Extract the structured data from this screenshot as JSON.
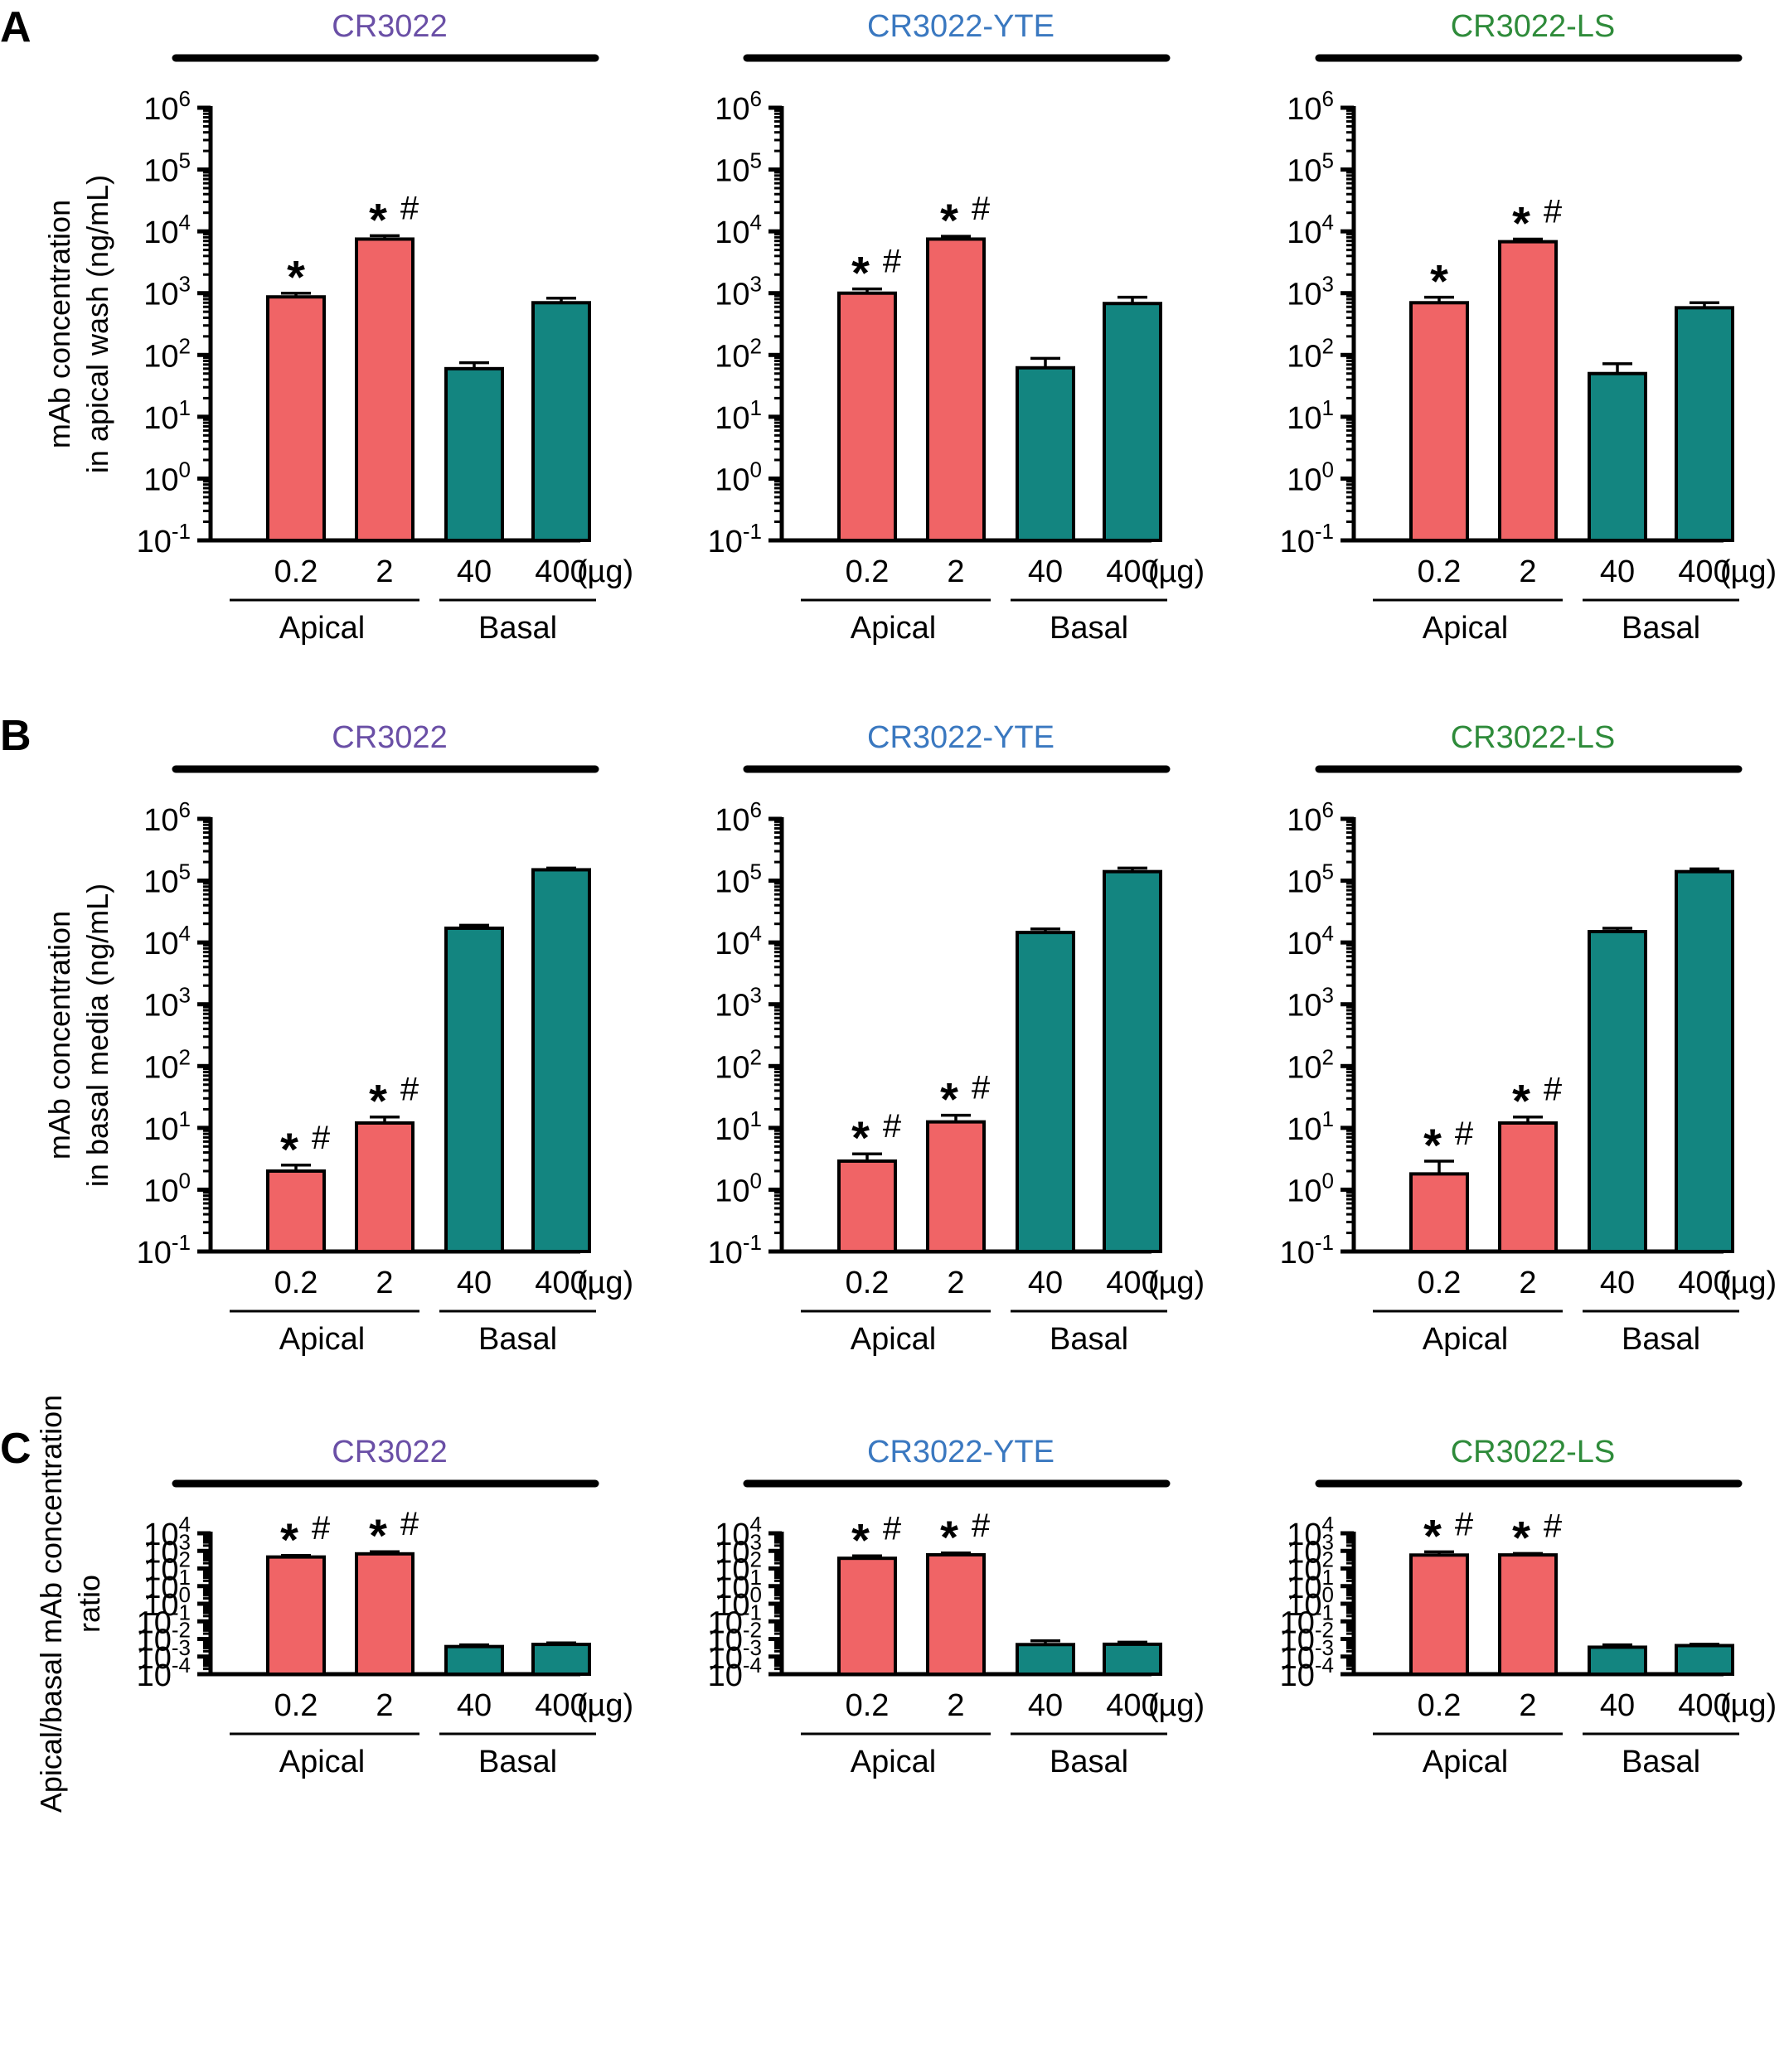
{
  "figure": {
    "panel_letters": [
      "A",
      "B",
      "C"
    ],
    "colors": {
      "apical": "#f06466",
      "basal": "#138580",
      "axis": "#000000"
    },
    "antibody_colors": {
      "CR3022": "#6a4fa6",
      "CR3022-YTE": "#3a78c0",
      "CR3022-LS": "#2e8b3a"
    }
  },
  "chart_data": [
    {
      "type": "bar",
      "row": "A",
      "title": "CR3022",
      "ylabel": [
        "mAb concentration",
        "in apical wash (ng/mL)"
      ],
      "yscale": "log",
      "ylim_exp": [
        -1,
        6
      ],
      "categories": [
        "0.2",
        "2",
        "40",
        "400"
      ],
      "unit_label": "(µg)",
      "groups": [
        "Apical",
        "Basal"
      ],
      "values": [
        870,
        7500,
        60,
        700
      ],
      "errors": [
        1000,
        8500,
        75,
        830
      ],
      "annotations": [
        "*",
        "* #",
        "",
        ""
      ]
    },
    {
      "type": "bar",
      "row": "A",
      "title": "CR3022-YTE",
      "ylabel": [
        "mAb concentration",
        "in apical wash (ng/mL)"
      ],
      "yscale": "log",
      "ylim_exp": [
        -1,
        6
      ],
      "categories": [
        "0.2",
        "2",
        "40",
        "400"
      ],
      "unit_label": "(µg)",
      "groups": [
        "Apical",
        "Basal"
      ],
      "values": [
        1000,
        7500,
        62,
        680
      ],
      "errors": [
        1170,
        8300,
        88,
        860
      ],
      "annotations": [
        "* #",
        "* #",
        "",
        ""
      ]
    },
    {
      "type": "bar",
      "row": "A",
      "title": "CR3022-LS",
      "ylabel": [
        "mAb concentration",
        "in apical wash (ng/mL)"
      ],
      "yscale": "log",
      "ylim_exp": [
        -1,
        6
      ],
      "categories": [
        "0.2",
        "2",
        "40",
        "400"
      ],
      "unit_label": "(µg)",
      "groups": [
        "Apical",
        "Basal"
      ],
      "values": [
        700,
        6800,
        50,
        580
      ],
      "errors": [
        860,
        7500,
        72,
        700
      ],
      "annotations": [
        "*",
        "* #",
        "",
        ""
      ]
    },
    {
      "type": "bar",
      "row": "B",
      "title": "CR3022",
      "ylabel": [
        "mAb concentration",
        "in basal media (ng/mL)"
      ],
      "yscale": "log",
      "ylim_exp": [
        -1,
        6
      ],
      "categories": [
        "0.2",
        "2",
        "40",
        "400"
      ],
      "unit_label": "(µg)",
      "groups": [
        "Apical",
        "Basal"
      ],
      "values": [
        2,
        12,
        17000,
        150000
      ],
      "errors": [
        2.5,
        15,
        19000,
        160000
      ],
      "annotations": [
        "* #",
        "* #",
        "",
        ""
      ]
    },
    {
      "type": "bar",
      "row": "B",
      "title": "CR3022-YTE",
      "ylabel": [
        "mAb concentration",
        "in basal media (ng/mL)"
      ],
      "yscale": "log",
      "ylim_exp": [
        -1,
        6
      ],
      "categories": [
        "0.2",
        "2",
        "40",
        "400"
      ],
      "unit_label": "(µg)",
      "groups": [
        "Apical",
        "Basal"
      ],
      "values": [
        2.9,
        12.5,
        14500,
        140000
      ],
      "errors": [
        3.8,
        16,
        16500,
        160000
      ],
      "annotations": [
        "* #",
        "* #",
        "",
        ""
      ]
    },
    {
      "type": "bar",
      "row": "B",
      "title": "CR3022-LS",
      "ylabel": [
        "mAb concentration",
        "in basal media (ng/mL)"
      ],
      "yscale": "log",
      "ylim_exp": [
        -1,
        6
      ],
      "categories": [
        "0.2",
        "2",
        "40",
        "400"
      ],
      "unit_label": "(µg)",
      "groups": [
        "Apical",
        "Basal"
      ],
      "values": [
        1.8,
        12,
        15000,
        140000
      ],
      "errors": [
        2.9,
        15,
        17000,
        155000
      ],
      "annotations": [
        "* #",
        "* #",
        "",
        ""
      ]
    },
    {
      "type": "bar",
      "row": "C",
      "title": "CR3022",
      "ylabel": [
        "Apical/basal mAb concentration",
        "ratio"
      ],
      "yscale": "log",
      "ylim_exp": [
        -4,
        4
      ],
      "categories": [
        "0.2",
        "2",
        "40",
        "400"
      ],
      "unit_label": "(µg)",
      "groups": [
        "Apical",
        "Basal"
      ],
      "values": [
        450,
        680,
        0.0037,
        0.0049
      ],
      "errors": [
        550,
        900,
        0.0046,
        0.006
      ],
      "annotations": [
        "* #",
        "* #",
        "",
        ""
      ]
    },
    {
      "type": "bar",
      "row": "C",
      "title": "CR3022-YTE",
      "ylabel": [
        "Apical/basal mAb concentration",
        "ratio"
      ],
      "yscale": "log",
      "ylim_exp": [
        -4,
        4
      ],
      "categories": [
        "0.2",
        "2",
        "40",
        "400"
      ],
      "unit_label": "(µg)",
      "groups": [
        "Apical",
        "Basal"
      ],
      "values": [
        380,
        600,
        0.0048,
        0.005
      ],
      "errors": [
        520,
        760,
        0.0078,
        0.0066
      ],
      "annotations": [
        "* #",
        "* #",
        "",
        ""
      ]
    },
    {
      "type": "bar",
      "row": "C",
      "title": "CR3022-LS",
      "ylabel": [
        "Apical/basal mAb concentration",
        "ratio"
      ],
      "yscale": "log",
      "ylim_exp": [
        -4,
        4
      ],
      "categories": [
        "0.2",
        "2",
        "40",
        "400"
      ],
      "unit_label": "(µg)",
      "groups": [
        "Apical",
        "Basal"
      ],
      "values": [
        580,
        590,
        0.0034,
        0.0042
      ],
      "errors": [
        880,
        710,
        0.0046,
        0.005
      ],
      "annotations": [
        "* #",
        "* #",
        "",
        ""
      ]
    }
  ]
}
